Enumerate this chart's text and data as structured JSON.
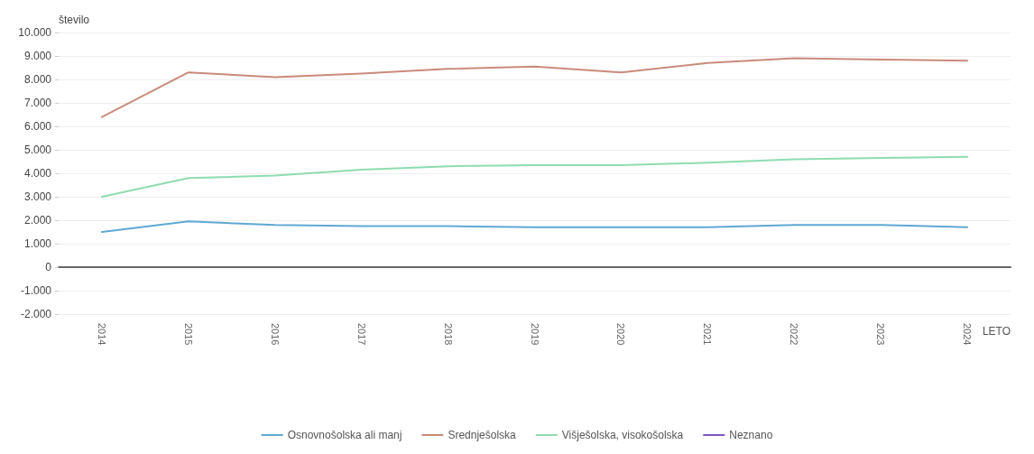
{
  "chart_data": {
    "type": "line",
    "xlabel": "LETO",
    "ylabel": "število",
    "categories": [
      "2014",
      "2015",
      "2016",
      "2017",
      "2018",
      "2019",
      "2020",
      "2021",
      "2022",
      "2023",
      "2024"
    ],
    "series": [
      {
        "name": "Osnovnošolska ali manj",
        "color": "#5fa8d3",
        "values": [
          1500,
          1950,
          1800,
          1750,
          1750,
          1700,
          1700,
          1700,
          1800,
          1800,
          1700
        ]
      },
      {
        "name": "Srednješolska",
        "color": "#c98b7b",
        "values": [
          6400,
          8300,
          8100,
          8250,
          8450,
          8550,
          8300,
          8700,
          8900,
          8850,
          8800
        ]
      },
      {
        "name": "Višješolska, visokošolska",
        "color": "#8fdcaf",
        "values": [
          3000,
          3800,
          3900,
          4150,
          4300,
          4350,
          4350,
          4450,
          4600,
          4650,
          4700
        ]
      },
      {
        "name": "Neznano",
        "color": "#7e57c2",
        "values": [
          null,
          null,
          null,
          null,
          null,
          null,
          null,
          null,
          null,
          null,
          null
        ]
      }
    ],
    "ylim": [
      -2000,
      10000
    ],
    "yticks": [
      {
        "value": -2000,
        "label": "-2.000"
      },
      {
        "value": -1000,
        "label": "-1.000"
      },
      0,
      {
        "value": 1000,
        "label": "1.000"
      },
      {
        "value": 2000,
        "label": "2.000"
      },
      {
        "value": 3000,
        "label": "3.000"
      },
      {
        "value": 4000,
        "label": "4.000"
      },
      {
        "value": 5000,
        "label": "5.000"
      },
      {
        "value": 6000,
        "label": "6.000"
      },
      {
        "value": 7000,
        "label": "7.000"
      },
      {
        "value": 8000,
        "label": "8.000"
      },
      {
        "value": 9000,
        "label": "9.000"
      },
      {
        "value": 10000,
        "label": "10.000"
      }
    ],
    "grid": "y",
    "legend": "bottom",
    "marker": "none",
    "line_style": "solid"
  }
}
